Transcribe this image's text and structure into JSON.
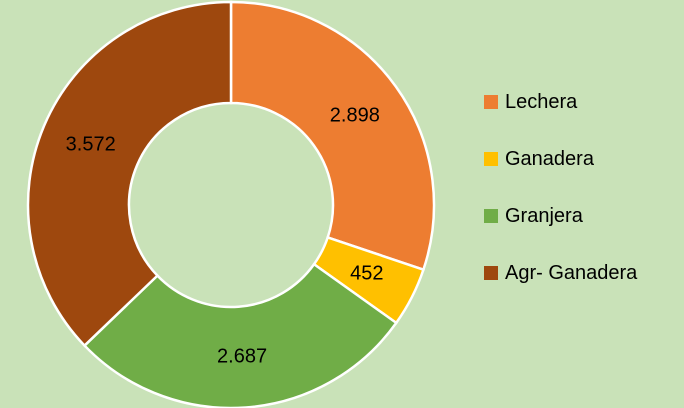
{
  "chart_data": {
    "type": "donut",
    "categories": [
      "Lechera",
      "Ganadera",
      "Granjera",
      "Agr- Ganadera"
    ],
    "values": [
      2898,
      452,
      2687,
      3572
    ],
    "value_labels": [
      "2.898",
      "452",
      "2.687",
      "3.572"
    ],
    "colors": [
      "#ed7d31",
      "#ffc000",
      "#70ad47",
      "#9e480e"
    ],
    "legend": "right"
  }
}
